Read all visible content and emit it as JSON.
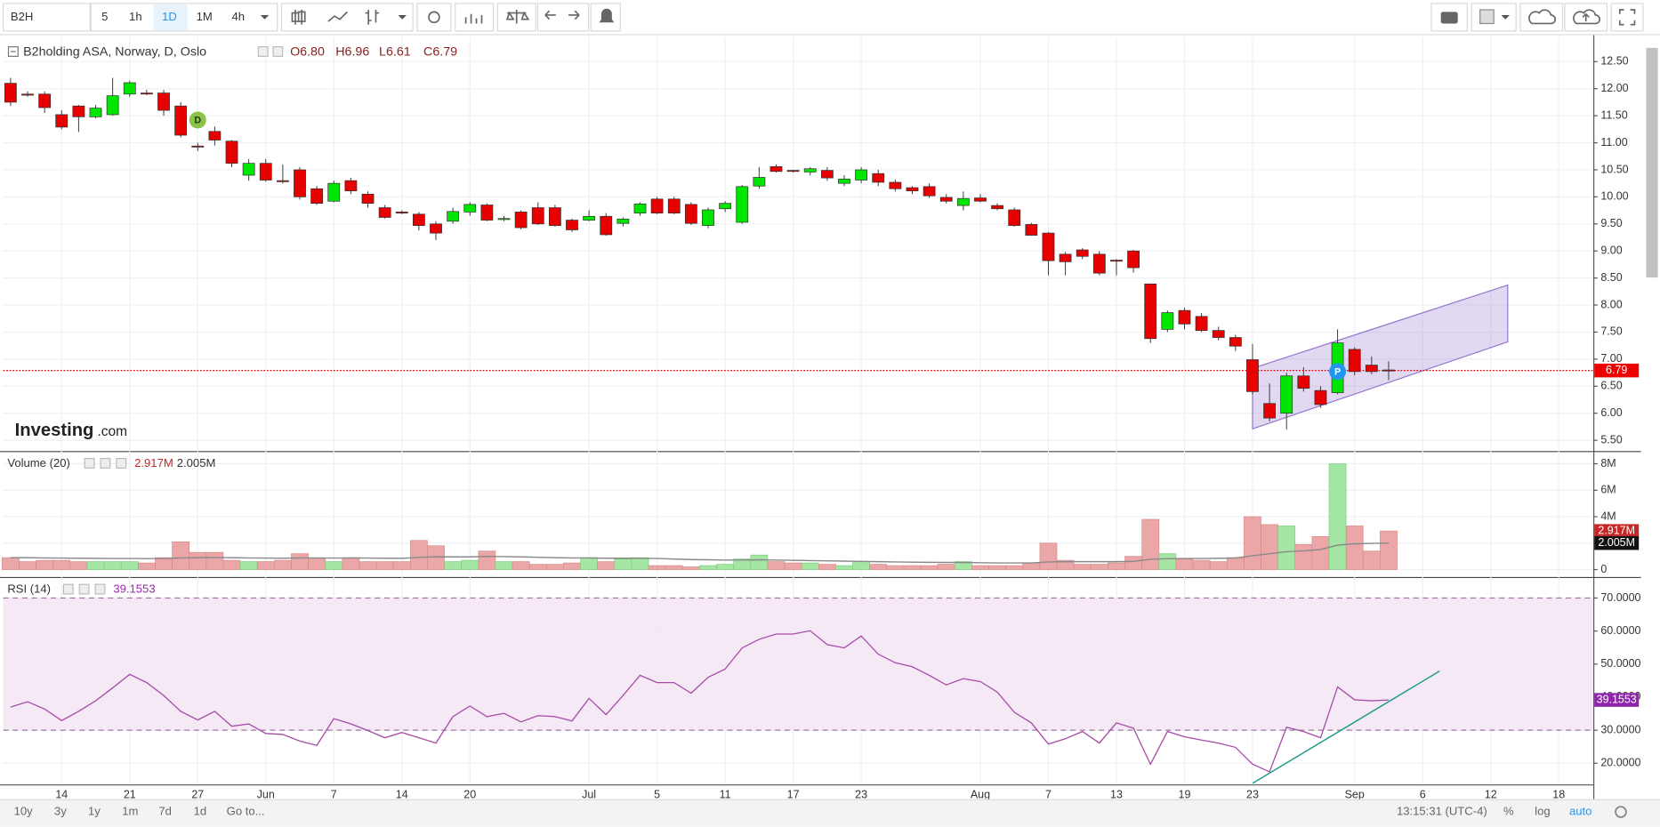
{
  "toolbar": {
    "symbol": "B2H",
    "intervals": [
      "5",
      "1h",
      "1D",
      "1M",
      "4h"
    ]
  },
  "bottom_bar": {
    "ranges": [
      "10y",
      "3y",
      "1y",
      "1m",
      "7d",
      "1d",
      "Go to..."
    ],
    "clock": "13:15:31 (UTC-4)",
    "scale_options": [
      "%",
      "log",
      "auto"
    ]
  },
  "chart_data": [
    {
      "type": "candlestick",
      "title": "B2holding ASA, Norway, D, Oslo",
      "ohlc_labels": [
        "O6.80",
        "H6.96",
        "L6.61",
        "C6.79"
      ],
      "open": [
        12.1,
        11.9,
        11.9,
        11.52,
        11.68,
        11.48,
        11.52,
        11.9,
        11.92,
        11.92,
        11.68,
        10.94,
        11.21,
        11.03,
        10.4,
        10.62,
        10.3,
        10.5,
        10.15,
        9.92,
        10.3,
        10.05,
        9.8,
        9.72,
        9.68,
        9.5,
        9.55,
        9.72,
        9.85,
        9.6,
        9.72,
        9.8,
        9.8,
        9.57,
        9.57,
        9.64,
        9.51,
        9.7,
        9.96,
        9.96,
        9.86,
        9.47,
        9.78,
        9.53,
        10.2,
        10.56,
        10.49,
        10.46,
        10.49,
        10.25,
        10.31,
        10.43,
        10.27,
        10.17,
        10.19,
        9.99,
        9.84,
        9.98,
        9.84,
        9.76,
        9.49,
        9.33,
        8.94,
        9.02,
        8.94,
        8.83,
        9.0,
        8.39,
        7.55,
        7.9,
        7.79,
        7.53,
        7.4,
        6.99,
        6.18,
        6.0,
        6.69,
        6.42,
        6.38,
        7.18,
        6.89,
        6.8
      ],
      "high": [
        12.2,
        11.95,
        11.95,
        11.6,
        11.7,
        11.7,
        12.2,
        12.15,
        11.98,
        11.98,
        11.75,
        11.0,
        11.3,
        11.05,
        10.7,
        10.7,
        10.6,
        10.55,
        10.2,
        10.3,
        10.35,
        10.1,
        9.85,
        9.75,
        9.72,
        9.55,
        9.8,
        9.9,
        9.88,
        9.65,
        9.75,
        9.9,
        9.85,
        9.6,
        9.75,
        9.7,
        9.62,
        9.9,
        10.0,
        10.0,
        9.9,
        9.8,
        9.92,
        10.22,
        10.55,
        10.6,
        10.5,
        10.55,
        10.55,
        10.4,
        10.55,
        10.5,
        10.32,
        10.2,
        10.25,
        10.05,
        10.1,
        10.05,
        9.88,
        9.8,
        9.52,
        9.35,
        8.98,
        9.05,
        9.0,
        8.85,
        9.02,
        8.4,
        7.9,
        7.95,
        7.85,
        7.6,
        7.45,
        7.28,
        6.55,
        6.75,
        6.85,
        6.5,
        7.55,
        7.22,
        7.05,
        6.96
      ],
      "low": [
        11.68,
        11.85,
        11.55,
        11.25,
        11.2,
        11.45,
        11.5,
        11.85,
        11.88,
        11.5,
        11.1,
        10.85,
        10.95,
        10.55,
        10.3,
        10.28,
        10.25,
        9.95,
        9.85,
        9.9,
        10.05,
        9.8,
        9.6,
        9.68,
        9.38,
        9.2,
        9.5,
        9.65,
        9.55,
        9.55,
        9.4,
        9.48,
        9.45,
        9.35,
        9.55,
        9.28,
        9.45,
        9.65,
        9.68,
        9.68,
        9.48,
        9.42,
        9.72,
        9.5,
        10.15,
        10.45,
        10.45,
        10.4,
        10.3,
        10.2,
        10.25,
        10.2,
        10.1,
        10.05,
        9.98,
        9.88,
        9.75,
        9.9,
        9.75,
        9.45,
        9.28,
        8.55,
        8.55,
        8.85,
        8.55,
        8.55,
        8.6,
        7.3,
        7.5,
        7.55,
        7.5,
        7.35,
        7.15,
        6.35,
        5.85,
        5.7,
        6.4,
        6.1,
        6.35,
        6.7,
        6.72,
        6.61
      ],
      "close": [
        11.75,
        11.88,
        11.65,
        11.29,
        11.48,
        11.64,
        11.87,
        12.11,
        11.9,
        11.6,
        11.14,
        10.93,
        11.05,
        10.62,
        10.62,
        10.31,
        10.29,
        10.0,
        9.88,
        10.25,
        10.11,
        9.88,
        9.62,
        9.7,
        9.47,
        9.33,
        9.73,
        9.86,
        9.57,
        9.6,
        9.43,
        9.5,
        9.47,
        9.39,
        9.64,
        9.3,
        9.59,
        9.87,
        9.7,
        9.7,
        9.51,
        9.76,
        9.88,
        10.19,
        10.36,
        10.47,
        10.47,
        10.52,
        10.35,
        10.33,
        10.5,
        10.27,
        10.15,
        10.11,
        10.02,
        9.92,
        9.97,
        9.92,
        9.78,
        9.47,
        9.29,
        8.82,
        8.8,
        8.9,
        8.59,
        8.82,
        8.69,
        7.38,
        7.86,
        7.65,
        7.53,
        7.4,
        7.24,
        6.4,
        5.91,
        6.69,
        6.46,
        6.16,
        7.3,
        6.77,
        6.77,
        6.79
      ],
      "up_color": "#00e600",
      "down_color": "#e60000",
      "ylim": [
        5.32,
        12.95
      ],
      "yticks": [
        {
          "value": 5.5,
          "label": "5.50"
        },
        {
          "value": 6,
          "label": "6.00"
        },
        {
          "value": 6.5,
          "label": "6.50"
        },
        {
          "value": 7,
          "label": "7.00"
        },
        {
          "value": 7.5,
          "label": "7.50"
        },
        {
          "value": 8,
          "label": "8.00"
        },
        {
          "value": 8.5,
          "label": "8.50"
        },
        {
          "value": 9,
          "label": "9.00"
        },
        {
          "value": 9.5,
          "label": "9.50"
        },
        {
          "value": 10,
          "label": "10.00"
        },
        {
          "value": 10.5,
          "label": "10.50"
        },
        {
          "value": 11,
          "label": "11.00"
        },
        {
          "value": 11.5,
          "label": "11.50"
        },
        {
          "value": 12,
          "label": "12.00"
        },
        {
          "value": 12.5,
          "label": "12.50"
        }
      ],
      "grid": true,
      "last_price": {
        "value": 6.79,
        "label": "6.79"
      },
      "markers": [
        {
          "label": "D",
          "x": 11,
          "value": 11.42,
          "color": "#8bc34a"
        },
        {
          "label": "P",
          "x": 78,
          "value": 6.77,
          "color": "#2196f3"
        }
      ],
      "channel": {
        "x": [
          73,
          88
        ],
        "upper": [
          6.83,
          8.37
        ],
        "lower": [
          5.71,
          7.32
        ],
        "color": "#9575cd"
      },
      "watermark": [
        "Investing",
        ".com"
      ]
    },
    {
      "type": "bar",
      "title": "Volume (20)",
      "values": [
        0.9,
        0.6,
        0.7,
        0.7,
        0.6,
        0.6,
        0.6,
        0.6,
        0.5,
        0.9,
        2.1,
        1.3,
        1.3,
        0.7,
        0.6,
        0.6,
        0.7,
        1.2,
        0.8,
        0.6,
        0.9,
        0.6,
        0.6,
        0.6,
        2.2,
        1.8,
        0.6,
        0.7,
        1.4,
        0.6,
        0.6,
        0.4,
        0.4,
        0.5,
        0.9,
        0.6,
        0.8,
        0.9,
        0.3,
        0.3,
        0.2,
        0.3,
        0.4,
        0.8,
        1.1,
        0.6,
        0.5,
        0.5,
        0.4,
        0.3,
        0.6,
        0.4,
        0.3,
        0.3,
        0.3,
        0.4,
        0.6,
        0.3,
        0.3,
        0.3,
        0.5,
        2.0,
        0.7,
        0.4,
        0.4,
        0.5,
        1.0,
        3.8,
        1.2,
        0.8,
        0.7,
        0.6,
        0.9,
        4.0,
        3.4,
        3.3,
        1.9,
        2.5,
        8.0,
        3.3,
        1.4,
        2.917
      ],
      "ma_values": [
        0.9,
        0.9,
        0.88,
        0.87,
        0.86,
        0.85,
        0.84,
        0.84,
        0.83,
        0.84,
        0.88,
        0.9,
        0.92,
        0.9,
        0.88,
        0.87,
        0.86,
        0.88,
        0.88,
        0.87,
        0.88,
        0.87,
        0.86,
        0.85,
        0.92,
        0.97,
        0.96,
        0.96,
        1.0,
        0.98,
        0.96,
        0.93,
        0.9,
        0.88,
        0.88,
        0.86,
        0.86,
        0.86,
        0.84,
        0.8,
        0.76,
        0.74,
        0.72,
        0.72,
        0.74,
        0.72,
        0.7,
        0.68,
        0.66,
        0.64,
        0.62,
        0.6,
        0.58,
        0.56,
        0.55,
        0.54,
        0.54,
        0.52,
        0.5,
        0.5,
        0.5,
        0.58,
        0.6,
        0.6,
        0.6,
        0.6,
        0.62,
        0.78,
        0.82,
        0.84,
        0.84,
        0.85,
        0.88,
        1.05,
        1.2,
        1.35,
        1.42,
        1.52,
        1.85,
        1.95,
        1.98,
        2.005
      ],
      "up_color": "#a5e6a5",
      "down_color": "#eba7a7",
      "ma_color": "#8a8a8a",
      "ylim": [
        -0.4,
        8.8
      ],
      "yticks": [
        0,
        {
          "value": 2,
          "label": "2M"
        },
        {
          "value": 4,
          "label": "4M"
        },
        {
          "value": 6,
          "label": "6M"
        },
        {
          "value": 8,
          "label": "8M"
        }
      ],
      "grid": true,
      "last_label": {
        "value": 2.917,
        "label": "2.917M"
      },
      "ma_label": {
        "value": 2.005,
        "label": "2.005M"
      }
    },
    {
      "type": "line",
      "title": "RSI (14)",
      "categories": [
        null,
        null,
        null,
        "14",
        null,
        null,
        null,
        "21",
        null,
        null,
        null,
        "27",
        null,
        null,
        null,
        "Jun",
        null,
        null,
        null,
        "7",
        null,
        null,
        null,
        "14",
        null,
        null,
        null,
        "20",
        null,
        null,
        null,
        null,
        null,
        null,
        "Jul",
        null,
        null,
        null,
        "5",
        null,
        null,
        null,
        "11",
        null,
        null,
        null,
        "17",
        null,
        null,
        null,
        "23",
        null,
        null,
        null,
        null,
        null,
        null,
        "Aug",
        null,
        null,
        null,
        "7",
        null,
        null,
        null,
        "13",
        null,
        null,
        null,
        "19",
        null,
        null,
        null,
        "23",
        null,
        null,
        null,
        null,
        null,
        "Sep",
        null,
        null,
        null,
        "6",
        null,
        null,
        null,
        "12",
        null,
        null,
        null,
        "18"
      ],
      "values": [
        37,
        38.6,
        36.4,
        32.9,
        35.7,
        38.9,
        42.8,
        46.9,
        44.4,
        40.5,
        35.7,
        33.1,
        35.7,
        31.2,
        31.9,
        29,
        28.7,
        26.7,
        25.4,
        33.5,
        31.9,
        29.9,
        27.7,
        29.3,
        27.7,
        26.1,
        34.1,
        37.3,
        34.1,
        35.1,
        32.5,
        34.4,
        34.1,
        32.8,
        39.6,
        34.7,
        40.5,
        46.6,
        44.4,
        44.4,
        41.2,
        46,
        48.5,
        54.9,
        57.5,
        59.1,
        59.1,
        60.1,
        55.9,
        54.9,
        58.5,
        53,
        50.4,
        49.2,
        46.6,
        43.7,
        45.6,
        44.7,
        41.5,
        35.4,
        32.2,
        25.8,
        27.4,
        29.6,
        26.1,
        32.2,
        30.6,
        19.7,
        29.6,
        28,
        27,
        26.1,
        24.8,
        19.7,
        17.4,
        30.9,
        29.6,
        27.7,
        43.1,
        39.2,
        38.9,
        39.1553,
        null,
        null,
        null,
        null,
        null,
        null,
        null,
        null,
        null,
        null
      ],
      "color": "#a64ca6",
      "band": [
        30,
        70
      ],
      "band_color": "#f3e5f5",
      "ylim": [
        13.9,
        75.4
      ],
      "yticks": [
        {
          "value": 20,
          "label": "20.0000"
        },
        {
          "value": 30,
          "label": "30.0000"
        },
        {
          "value": 40,
          "label": "40.0000"
        },
        {
          "value": 50,
          "label": "50.0000"
        },
        {
          "value": 60,
          "label": "60.0000"
        },
        {
          "value": 70,
          "label": "70.0000"
        }
      ],
      "grid": true,
      "last_label": {
        "value": 39.1553,
        "label": "39.1553"
      },
      "trendline": {
        "x": [
          73,
          84
        ],
        "values": [
          13.9,
          47.9
        ],
        "color": "#1e9a8a"
      }
    }
  ]
}
